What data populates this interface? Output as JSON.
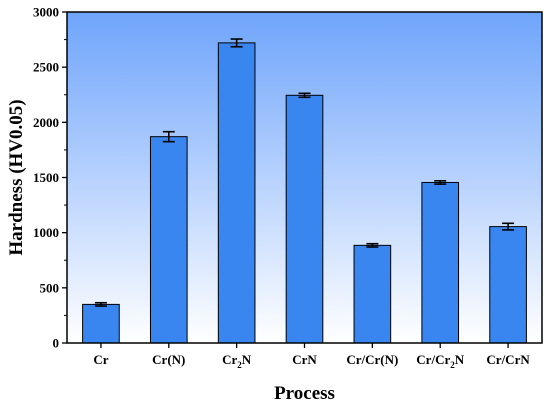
{
  "chart_data": {
    "type": "bar",
    "title": "",
    "xlabel": "Process",
    "ylabel": "Hardness (HV0.05)",
    "ylim": [
      0,
      3000
    ],
    "yticks": [
      0,
      500,
      1000,
      1500,
      2000,
      2500,
      3000
    ],
    "categories": [
      {
        "label": "Cr",
        "base": "Cr",
        "sub": "",
        "tail": ""
      },
      {
        "label": "Cr(N)",
        "base": "Cr(N)",
        "sub": "",
        "tail": ""
      },
      {
        "label": "Cr2N",
        "base": "Cr",
        "sub": "2",
        "tail": "N"
      },
      {
        "label": "CrN",
        "base": "CrN",
        "sub": "",
        "tail": ""
      },
      {
        "label": "Cr/Cr(N)",
        "base": "Cr/Cr(N)",
        "sub": "",
        "tail": ""
      },
      {
        "label": "Cr/Cr2N",
        "base": "Cr/Cr",
        "sub": "2",
        "tail": "N"
      },
      {
        "label": "Cr/CrN",
        "base": "Cr/CrN",
        "sub": "",
        "tail": ""
      }
    ],
    "values": [
      350,
      1870,
      2720,
      2245,
      885,
      1455,
      1055
    ],
    "errors": [
      15,
      45,
      35,
      18,
      15,
      15,
      30
    ],
    "bar_color": "#3a86f0",
    "grid": false,
    "legend": "none"
  },
  "colors": {
    "plot_bg_top": "#6ea4fb",
    "plot_bg_bottom": "#ffffff",
    "bar_fill": "#3a86f0",
    "bar_stroke": "#000000"
  }
}
